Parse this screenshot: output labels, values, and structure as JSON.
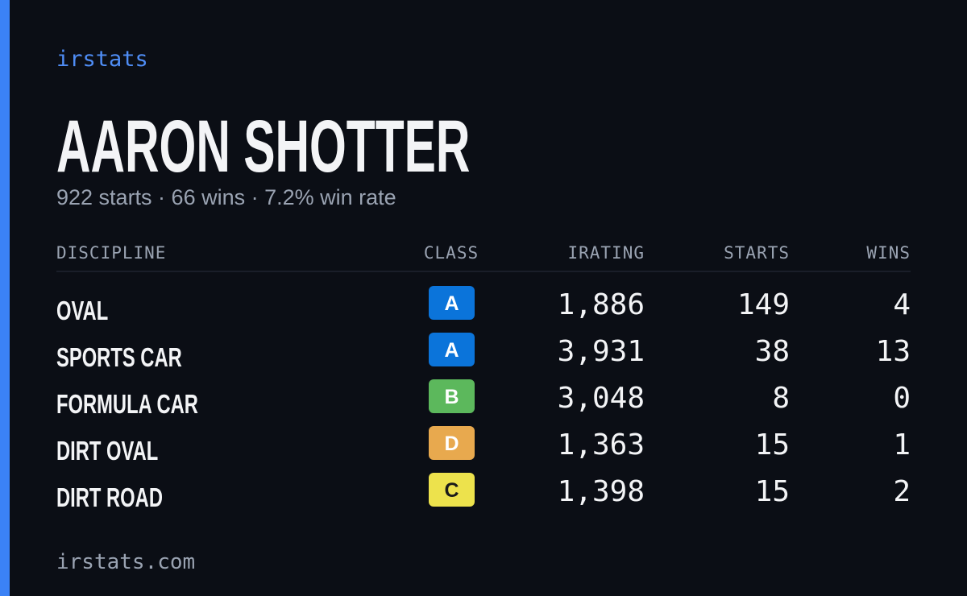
{
  "brand": "irstats",
  "player": {
    "name": "AARON SHOTTER",
    "summary": "922 starts · 66 wins · 7.2% win rate"
  },
  "table": {
    "headers": [
      "DISCIPLINE",
      "CLASS",
      "IRATING",
      "STARTS",
      "WINS"
    ],
    "rows": [
      {
        "discipline": "OVAL",
        "class": "A",
        "class_color": "#0b74da",
        "class_text_color": "#ffffff",
        "irating": "1,886",
        "starts": 149,
        "wins": 4
      },
      {
        "discipline": "SPORTS CAR",
        "class": "A",
        "class_color": "#0b74da",
        "class_text_color": "#ffffff",
        "irating": "3,931",
        "starts": 38,
        "wins": 13
      },
      {
        "discipline": "FORMULA CAR",
        "class": "B",
        "class_color": "#5cb85c",
        "class_text_color": "#ffffff",
        "irating": "3,048",
        "starts": 8,
        "wins": 0
      },
      {
        "discipline": "DIRT OVAL",
        "class": "D",
        "class_color": "#e8a94e",
        "class_text_color": "#ffffff",
        "irating": "1,363",
        "starts": 15,
        "wins": 1
      },
      {
        "discipline": "DIRT ROAD",
        "class": "C",
        "class_color": "#ede24c",
        "class_text_color": "#1a1a1a",
        "irating": "1,398",
        "starts": 15,
        "wins": 2
      }
    ]
  },
  "footer": "irstats.com"
}
